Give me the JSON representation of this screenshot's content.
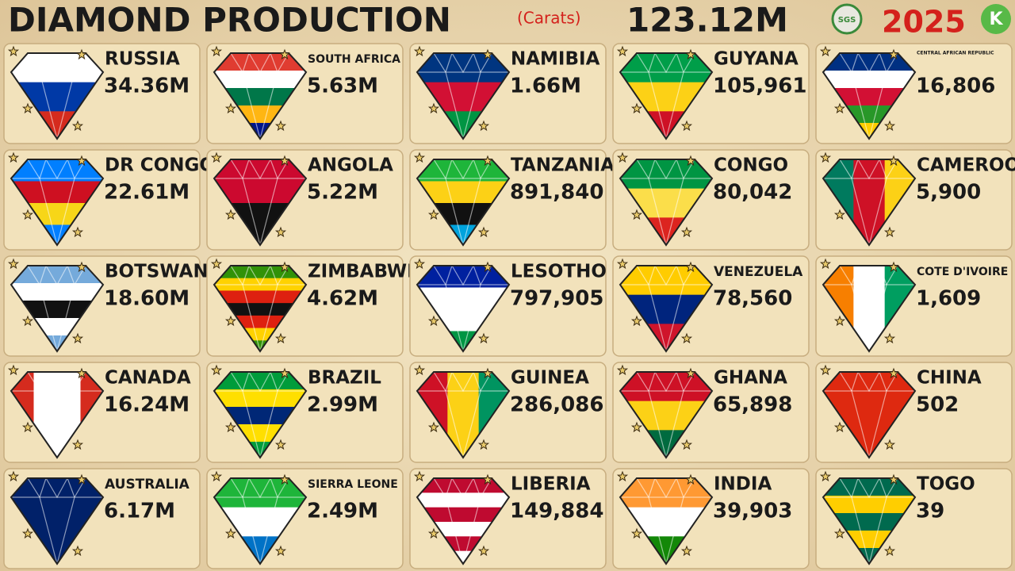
{
  "header": {
    "title": "DIAMOND PRODUCTION",
    "unit": "(Carats)",
    "total": "123.12M",
    "year": "2025",
    "logos": [
      "SGS",
      "K"
    ]
  },
  "cards": [
    {
      "name": "RUSSIA",
      "value": "34.36M"
    },
    {
      "name": "SOUTH AFRICA",
      "value": "5.63M"
    },
    {
      "name": "NAMIBIA",
      "value": "1.66M"
    },
    {
      "name": "GUYANA",
      "value": "105,961"
    },
    {
      "name": "CENTRAL AFRICAN REPUBLIC",
      "value": "16,806"
    },
    {
      "name": "DR CONGO",
      "value": "22.61M"
    },
    {
      "name": "ANGOLA",
      "value": "5.22M"
    },
    {
      "name": "TANZANIA",
      "value": "891,840"
    },
    {
      "name": "CONGO",
      "value": "80,042"
    },
    {
      "name": "CAMEROON",
      "value": "5,900"
    },
    {
      "name": "BOTSWANA",
      "value": "18.60M"
    },
    {
      "name": "ZIMBABWE",
      "value": "4.62M"
    },
    {
      "name": "LESOTHO",
      "value": "797,905"
    },
    {
      "name": "VENEZUELA",
      "value": "78,560"
    },
    {
      "name": "COTE D'IVOIRE",
      "value": "1,609"
    },
    {
      "name": "CANADA",
      "value": "16.24M"
    },
    {
      "name": "BRAZIL",
      "value": "2.99M"
    },
    {
      "name": "GUINEA",
      "value": "286,086"
    },
    {
      "name": "GHANA",
      "value": "65,898"
    },
    {
      "name": "CHINA",
      "value": "502"
    },
    {
      "name": "AUSTRALIA",
      "value": "6.17M"
    },
    {
      "name": "SIERRA LEONE",
      "value": "2.49M"
    },
    {
      "name": "LIBERIA",
      "value": "149,884"
    },
    {
      "name": "INDIA",
      "value": "39,903"
    },
    {
      "name": "TOGO",
      "value": "39"
    }
  ]
}
